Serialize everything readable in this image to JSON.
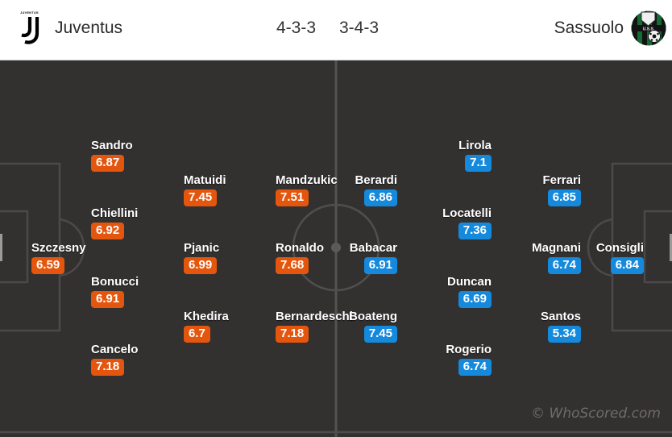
{
  "header": {
    "home": {
      "name": "Juventus",
      "formation": "4-3-3",
      "logo_text": "JUVENTUS"
    },
    "away": {
      "name": "Sassuolo",
      "formation": "3-4-3",
      "logo_text": "U.S.S."
    }
  },
  "colors": {
    "home_badge": "#e4560d",
    "away_badge": "#1589dc",
    "pitch_background": "#333030",
    "pitch_lines": "#4b4949",
    "sassuolo_green": "#156b33"
  },
  "watermark": "© WhoScored.com",
  "teams": [
    {
      "id": "home",
      "side": "left",
      "badge_color": "#e4560d",
      "lines": [
        [
          {
            "name": "Szczesny",
            "rating": "6.59"
          }
        ],
        [
          {
            "name": "Sandro",
            "rating": "6.87"
          },
          {
            "name": "Chiellini",
            "rating": "6.92"
          },
          {
            "name": "Bonucci",
            "rating": "6.91"
          },
          {
            "name": "Cancelo",
            "rating": "7.18"
          }
        ],
        [
          {
            "name": "Matuidi",
            "rating": "7.45"
          },
          {
            "name": "Pjanic",
            "rating": "6.99"
          },
          {
            "name": "Khedira",
            "rating": "6.7"
          }
        ],
        [
          {
            "name": "Mandzukic",
            "rating": "7.51"
          },
          {
            "name": "Ronaldo",
            "rating": "7.68"
          },
          {
            "name": "Bernardeschi",
            "rating": "7.18"
          }
        ]
      ]
    },
    {
      "id": "away",
      "side": "right",
      "badge_color": "#1589dc",
      "lines": [
        [
          {
            "name": "Consigli",
            "rating": "6.84"
          }
        ],
        [
          {
            "name": "Ferrari",
            "rating": "6.85"
          },
          {
            "name": "Magnani",
            "rating": "6.74"
          },
          {
            "name": "Santos",
            "rating": "5.34"
          }
        ],
        [
          {
            "name": "Lirola",
            "rating": "7.1"
          },
          {
            "name": "Locatelli",
            "rating": "7.36"
          },
          {
            "name": "Duncan",
            "rating": "6.69"
          },
          {
            "name": "Rogerio",
            "rating": "6.74"
          }
        ],
        [
          {
            "name": "Berardi",
            "rating": "6.86"
          },
          {
            "name": "Babacar",
            "rating": "6.91"
          },
          {
            "name": "Boateng",
            "rating": "7.45"
          }
        ]
      ]
    }
  ]
}
